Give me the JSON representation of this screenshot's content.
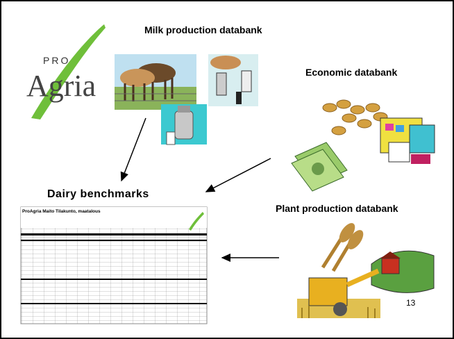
{
  "slide": {
    "milk_title": "Milk production databank",
    "economic_title": "Economic databank",
    "dairy_title": "Dairy benchmarks",
    "plant_title": "Plant production databank",
    "page_number": "13",
    "logo": {
      "top": "PRO",
      "main": "Agria"
    },
    "sheet_title": "ProAgria Maito Tilakunto, maatalous"
  }
}
